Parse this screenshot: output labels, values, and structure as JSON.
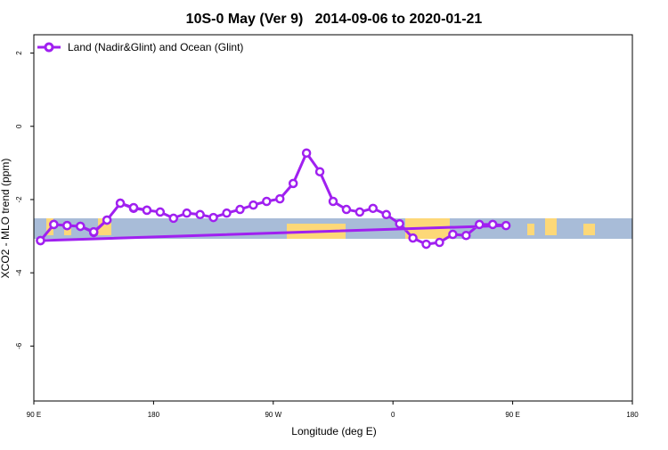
{
  "chart_data": {
    "type": "line",
    "title": "10S-0 May (Ver 9)   2014-09-06 to 2020-01-21",
    "xlabel": "Longitude (deg E)",
    "ylabel": "XCO2 - MLO trend (ppm)",
    "xlim_label": [
      "90 E",
      "90 E"
    ],
    "xticks": [
      "90 E",
      "180",
      "90 W",
      "0",
      "90 E",
      "180"
    ],
    "ylim": [
      -7.5,
      2.5
    ],
    "yticks": [
      2,
      0,
      -2,
      -4,
      -6
    ],
    "grid": false,
    "legend_position": "top-left",
    "series": [
      {
        "name": "Land (Nadir&Glint) and Ocean (Glint)",
        "color": "#a020f0",
        "longitude": [
          95,
          105,
          115,
          125,
          135,
          145,
          155,
          165,
          175,
          -175,
          -165,
          -155,
          -145,
          -135,
          -125,
          -115,
          -105,
          -95,
          -85,
          -75,
          -65,
          -55,
          -45,
          -35,
          -25,
          -15,
          -5,
          5,
          15,
          25,
          35,
          45,
          55,
          65,
          75,
          85,
          95,
          105,
          115,
          125,
          135,
          145,
          155,
          165,
          175
        ],
        "values": [
          -3.12,
          -2.68,
          -2.71,
          -2.73,
          -2.9,
          -2.56,
          -2.1,
          -2.24,
          -2.29,
          -2.34,
          -2.51,
          -2.37,
          -2.41,
          -2.49,
          -2.37,
          -2.27,
          -2.15,
          -2.05,
          -1.98,
          -1.56,
          -0.73,
          -1.24,
          -2.05,
          -2.27,
          -2.34,
          -2.24,
          -2.41,
          -2.66,
          -3.05,
          -3.22,
          -3.17,
          -2.95,
          -2.98,
          -2.68,
          -2.68,
          -2.71,
          -3.12,
          -2.68,
          -2.71,
          -2.73,
          -2.88,
          -2.56,
          -2.1,
          -2.22,
          -2.29
        ]
      }
    ],
    "map_band": {
      "latitude_range": "10S-0",
      "ocean_color": "#a8bcd8",
      "land_color": "#fdd878"
    }
  }
}
